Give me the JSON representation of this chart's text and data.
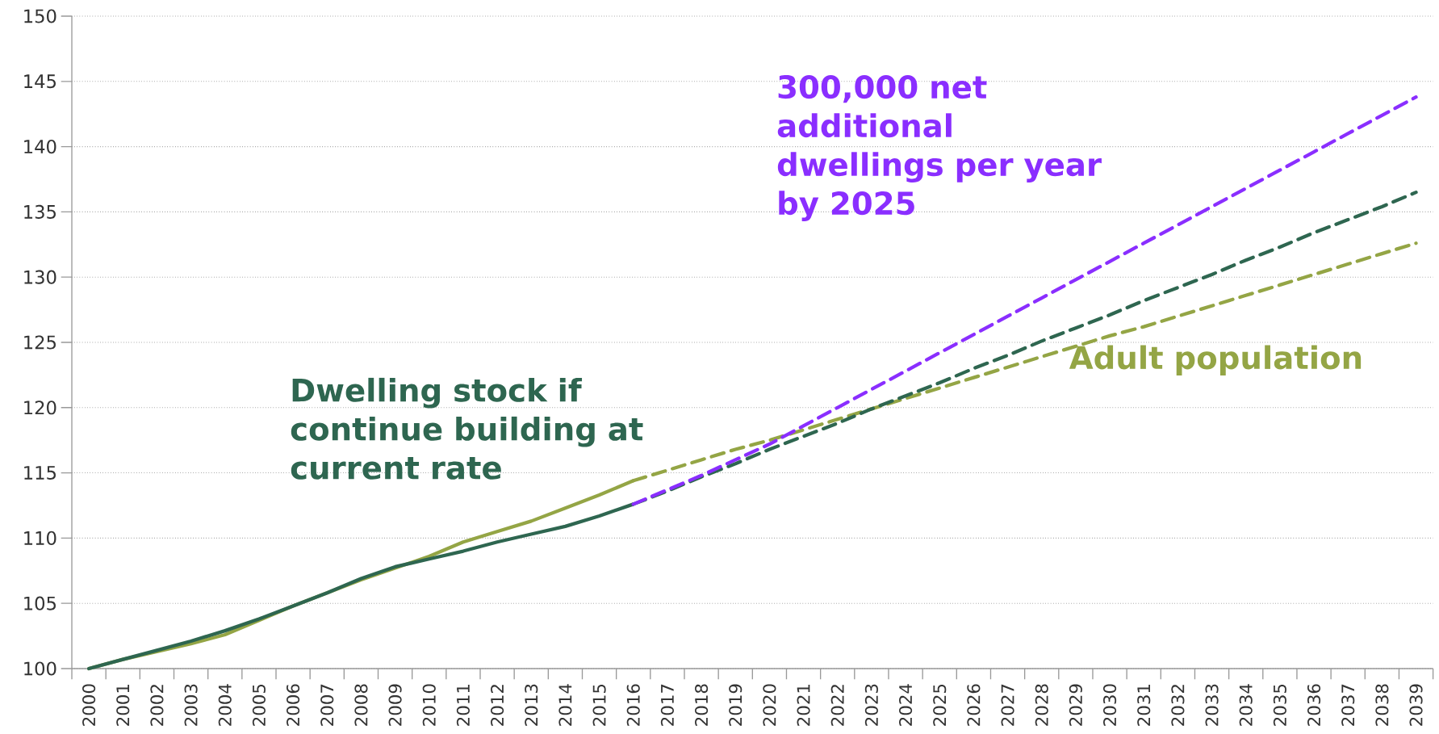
{
  "chart_data": {
    "type": "line",
    "categories": [
      "2000",
      "2001",
      "2002",
      "2003",
      "2004",
      "2005",
      "2006",
      "2007",
      "2008",
      "2009",
      "2010",
      "2011",
      "2012",
      "2013",
      "2014",
      "2015",
      "2016",
      "2017",
      "2018",
      "2019",
      "2020",
      "2021",
      "2022",
      "2023",
      "2024",
      "2025",
      "2026",
      "2027",
      "2028",
      "2029",
      "2030",
      "2031",
      "2032",
      "2033",
      "2034",
      "2035",
      "2036",
      "2037",
      "2038",
      "2039"
    ],
    "series": [
      {
        "name": "Adult population",
        "color": "#94a545",
        "line_style": "solid",
        "values": [
          100,
          100.7,
          101.3,
          101.9,
          102.6,
          103.7,
          104.8,
          105.8,
          106.8,
          107.7,
          108.6,
          109.7,
          110.5,
          111.3,
          112.3,
          113.3,
          114.4,
          null,
          null,
          null,
          null,
          null,
          null,
          null,
          null,
          null,
          null,
          null,
          null,
          null,
          null,
          null,
          null,
          null,
          null,
          null,
          null,
          null,
          null,
          null
        ]
      },
      {
        "color": "#94a545",
        "line_style": "dashed",
        "values": [
          null,
          null,
          null,
          null,
          null,
          null,
          null,
          null,
          null,
          null,
          null,
          null,
          null,
          null,
          null,
          null,
          114.4,
          115.2,
          116.0,
          116.8,
          117.5,
          118.3,
          119.1,
          119.9,
          120.7,
          121.5,
          122.3,
          123.1,
          123.9,
          124.7,
          125.5,
          126.2,
          127.0,
          127.8,
          128.6,
          129.4,
          130.2,
          131.0,
          131.8,
          132.6
        ]
      },
      {
        "name": "Dwelling stock if continue building at current rate",
        "color": "#2e6650",
        "line_style": "solid",
        "values": [
          100,
          100.7,
          101.4,
          102.1,
          102.9,
          103.8,
          104.8,
          105.8,
          106.9,
          107.8,
          108.4,
          109.0,
          109.7,
          110.3,
          110.9,
          111.7,
          112.6,
          null,
          null,
          null,
          null,
          null,
          null,
          null,
          null,
          null,
          null,
          null,
          null,
          null,
          null,
          null,
          null,
          null,
          null,
          null,
          null,
          null,
          null,
          null
        ]
      },
      {
        "color": "#2e6650",
        "line_style": "dashed",
        "values": [
          null,
          null,
          null,
          null,
          null,
          null,
          null,
          null,
          null,
          null,
          null,
          null,
          null,
          null,
          null,
          null,
          112.6,
          113.6,
          114.7,
          115.7,
          116.8,
          117.8,
          118.8,
          119.9,
          120.9,
          121.9,
          123.0,
          124.0,
          125.1,
          126.1,
          127.1,
          128.2,
          129.2,
          130.2,
          131.3,
          132.3,
          133.4,
          134.4,
          135.4,
          136.5
        ]
      },
      {
        "name": "300,000 net additional dwellings per year by 2025",
        "color": "#8a2eff",
        "line_style": "dashed",
        "values": [
          null,
          null,
          null,
          null,
          null,
          null,
          null,
          null,
          null,
          null,
          null,
          null,
          null,
          null,
          null,
          null,
          112.6,
          113.7,
          114.8,
          116.0,
          117.2,
          118.6,
          120.0,
          121.4,
          122.8,
          124.2,
          125.6,
          127.0,
          128.4,
          129.8,
          131.2,
          132.6,
          134.0,
          135.4,
          136.8,
          138.2,
          139.6,
          141.0,
          142.4,
          143.8
        ]
      }
    ],
    "ylim": [
      100,
      150
    ],
    "yticks": [
      100,
      105,
      110,
      115,
      120,
      125,
      130,
      135,
      140,
      145,
      150
    ],
    "grid": "y"
  }
}
